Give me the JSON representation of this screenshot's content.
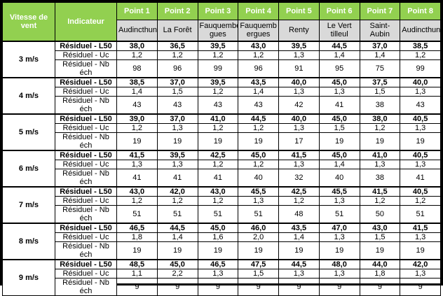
{
  "colors": {
    "header_green": "#92D050",
    "location_gray": "#D9D9D9",
    "border_black": "#000000",
    "header_text": "#ffffff",
    "body_text": "#000000"
  },
  "table": {
    "corner_headers": {
      "wind_speed": "Vitesse de vent",
      "indicator": "Indicateur"
    },
    "point_headers": [
      "Point 1",
      "Point 2",
      "Point 3",
      "Point 4",
      "Point 5",
      "Point 6",
      "Point 7",
      "Point 8"
    ],
    "locations": [
      "Audincthun",
      "La Forêt",
      "Fauquember\ngues",
      "Fauquemb\nergues",
      "Renty",
      "Le Vert\ntilleul",
      "Saint-Aubin",
      "Audincthun"
    ],
    "row_labels": {
      "l50": "Résiduel - L50",
      "uc": "Résiduel - Uc",
      "nb": "Résiduel - Nb éch"
    },
    "groups": [
      {
        "speed": "3 m/s",
        "l50": [
          "38,0",
          "36,5",
          "39,5",
          "43,0",
          "39,5",
          "44,5",
          "37,0",
          "38,5"
        ],
        "uc": [
          "1,2",
          "1,2",
          "1,2",
          "1,2",
          "1,3",
          "1,4",
          "1,4",
          "1,2"
        ],
        "nb": [
          "98",
          "96",
          "99",
          "96",
          "91",
          "95",
          "75",
          "99"
        ]
      },
      {
        "speed": "4 m/s",
        "l50": [
          "38,5",
          "37,0",
          "39,5",
          "43,5",
          "40,0",
          "45,0",
          "37,5",
          "40,0"
        ],
        "uc": [
          "1,4",
          "1,5",
          "1,2",
          "1,4",
          "1,3",
          "1,3",
          "1,5",
          "1,3"
        ],
        "nb": [
          "43",
          "43",
          "43",
          "43",
          "42",
          "41",
          "38",
          "43"
        ]
      },
      {
        "speed": "5 m/s",
        "l50": [
          "39,0",
          "37,0",
          "41,0",
          "44,5",
          "40,0",
          "45,0",
          "38,0",
          "40,5"
        ],
        "uc": [
          "1,2",
          "1,3",
          "1,2",
          "1,2",
          "1,3",
          "1,5",
          "1,2",
          "1,3"
        ],
        "nb": [
          "19",
          "19",
          "19",
          "19",
          "17",
          "19",
          "19",
          "19"
        ]
      },
      {
        "speed": "6 m/s",
        "l50": [
          "41,5",
          "39,5",
          "42,5",
          "45,0",
          "41,5",
          "45,0",
          "41,0",
          "40,5"
        ],
        "uc": [
          "1,3",
          "1,3",
          "1,2",
          "1,2",
          "1,3",
          "1,4",
          "1,3",
          "1,3"
        ],
        "nb": [
          "41",
          "41",
          "41",
          "40",
          "32",
          "40",
          "38",
          "41"
        ]
      },
      {
        "speed": "7 m/s",
        "l50": [
          "43,0",
          "42,0",
          "43,0",
          "45,5",
          "42,5",
          "45,5",
          "41,5",
          "40,5"
        ],
        "uc": [
          "1,2",
          "1,2",
          "1,2",
          "1,3",
          "1,2",
          "1,3",
          "1,2",
          "1,2"
        ],
        "nb": [
          "51",
          "51",
          "51",
          "51",
          "48",
          "51",
          "50",
          "51"
        ]
      },
      {
        "speed": "8 m/s",
        "l50": [
          "46,5",
          "44,5",
          "45,0",
          "46,0",
          "43,5",
          "47,0",
          "43,0",
          "41,5"
        ],
        "uc": [
          "1,8",
          "1,4",
          "1,6",
          "2,0",
          "1,4",
          "1,3",
          "1,5",
          "1,3"
        ],
        "nb": [
          "19",
          "19",
          "19",
          "19",
          "19",
          "19",
          "19",
          "19"
        ]
      },
      {
        "speed": "9 m/s",
        "l50": [
          "48,5",
          "45,0",
          "46,5",
          "47,5",
          "44,5",
          "48,0",
          "44,0",
          "42,0"
        ],
        "uc": [
          "1,1",
          "2,2",
          "1,3",
          "1,5",
          "1,3",
          "1,3",
          "1,8",
          "1,3"
        ],
        "nb": [
          "9",
          "9",
          "9",
          "9",
          "9",
          "9",
          "9",
          "9"
        ]
      }
    ]
  }
}
